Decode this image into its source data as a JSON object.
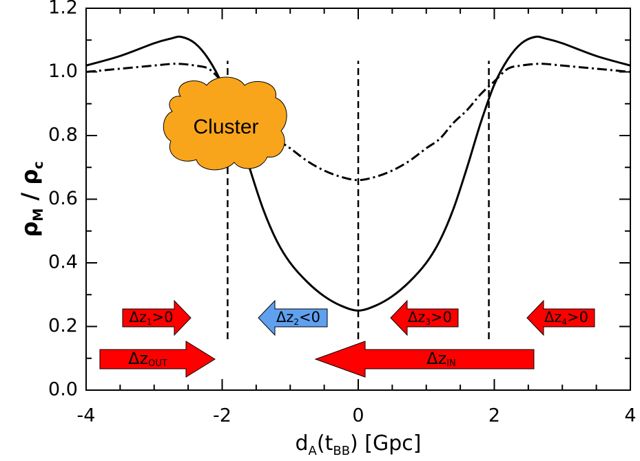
{
  "chart_data": {
    "type": "line",
    "xlabel": [
      {
        "text": "d"
      },
      {
        "text": "A",
        "sub": true
      },
      {
        "text": "(t"
      },
      {
        "text": "BB",
        "sub": true
      },
      {
        "text": ") [Gpc]"
      }
    ],
    "ylabel": [
      {
        "text": "ρ"
      },
      {
        "text": "M",
        "sub": true
      },
      {
        "text": " / ρ"
      },
      {
        "text": "c",
        "sub": true
      }
    ],
    "x": [
      -4,
      -3.5,
      -3,
      -2.75,
      -2.6,
      -2.4,
      -2.2,
      -2,
      -1.8,
      -1.6,
      -1.4,
      -1.2,
      -1,
      -0.75,
      -0.5,
      -0.25,
      0,
      0.25,
      0.5,
      0.75,
      1,
      1.2,
      1.4,
      1.6,
      1.8,
      2,
      2.2,
      2.4,
      2.6,
      2.75,
      3,
      3.5,
      4
    ],
    "series": [
      {
        "color": "#000000",
        "style": "solid",
        "values": [
          1.02,
          1.05,
          1.09,
          1.105,
          1.11,
          1.09,
          1.04,
          0.96,
          0.84,
          0.7,
          0.57,
          0.47,
          0.4,
          0.34,
          0.295,
          0.265,
          0.25,
          0.265,
          0.295,
          0.34,
          0.4,
          0.47,
          0.57,
          0.7,
          0.84,
          0.96,
          1.04,
          1.09,
          1.11,
          1.105,
          1.09,
          1.05,
          1.02
        ]
      },
      {
        "color": "#000000",
        "style": "dashdot",
        "values": [
          1.0,
          1.01,
          1.02,
          1.025,
          1.025,
          1.02,
          1.01,
          0.97,
          0.93,
          0.88,
          0.84,
          0.79,
          0.76,
          0.72,
          0.69,
          0.67,
          0.66,
          0.67,
          0.69,
          0.72,
          0.76,
          0.79,
          0.84,
          0.88,
          0.93,
          0.97,
          1.01,
          1.02,
          1.025,
          1.025,
          1.02,
          1.01,
          1.0
        ]
      }
    ],
    "vlines": [
      {
        "x": -1.92,
        "ymin": 0.16,
        "ymax": 1.035
      },
      {
        "x": 0,
        "ymin": 0.16,
        "ymax": 1.035
      },
      {
        "x": 1.92,
        "ymin": 0.16,
        "ymax": 1.035
      }
    ],
    "xlim": [
      -4,
      4
    ],
    "xticks": [
      -4,
      -2,
      0,
      2,
      4
    ],
    "xminorticks": [
      -3.5,
      -3,
      -2.5,
      -1.5,
      -1,
      -0.5,
      0.5,
      1,
      1.5,
      2.5,
      3,
      3.5
    ],
    "ylim": [
      0,
      1.2
    ],
    "yticks": [
      {
        "value": 0,
        "label": "0.0"
      },
      0.2,
      0.4,
      0.6,
      0.8,
      {
        "value": 1,
        "label": "1.0"
      },
      1.2
    ],
    "yminorticks": [
      0.1,
      0.3,
      0.5,
      0.7,
      0.9,
      1.1
    ],
    "cluster_label": "Cluster",
    "arrows": [
      {
        "text": "Δz",
        "sub": "1",
        "after": ">0",
        "color": "#ff0000",
        "direction": "right"
      },
      {
        "text": "Δz",
        "sub": "2",
        "after": "<0",
        "color": "#5fa0ef",
        "direction": "left"
      },
      {
        "text": "Δz",
        "sub": "3",
        "after": ">0",
        "color": "#ff0000",
        "direction": "left"
      },
      {
        "text": "Δz",
        "sub": "4",
        "after": ">0",
        "color": "#ff0000",
        "direction": "left"
      },
      {
        "text": "Δz",
        "sub": "OUT",
        "color": "#ff0000",
        "direction": "right"
      },
      {
        "text": "Δz",
        "sub": "IN",
        "color": "#ff0000",
        "direction": "left"
      }
    ]
  }
}
